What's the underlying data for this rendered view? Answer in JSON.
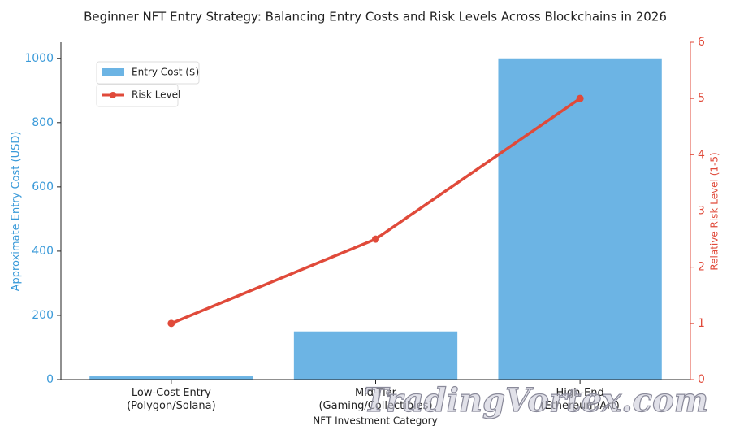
{
  "chart_data": {
    "type": "bar_line",
    "title": "Beginner NFT Entry Strategy: Balancing Entry Costs and Risk Levels Across Blockchains in 2026",
    "x_label": "NFT Investment Category",
    "y_label": "Approximate Entry Cost (USD)",
    "y2_label": "Relative Risk Level (1-5)",
    "categories": [
      "Low-Cost Entry\n(Polygon/Solana)",
      "Mid-Tier\n(Gaming/Collectibles)",
      "High-End\n(Ethereum/Art)"
    ],
    "series": [
      {
        "name": "Entry Cost ($)",
        "type": "bar",
        "color": "#6cb4e4",
        "values": [
          10,
          150,
          1000
        ]
      },
      {
        "name": "Risk Level",
        "type": "line",
        "axis": "y2",
        "color": "#e04a3a",
        "values": [
          1,
          2.5,
          5
        ]
      }
    ],
    "ylim": [
      0,
      1050
    ],
    "yticks": [
      0,
      200,
      400,
      600,
      800,
      1000
    ],
    "y2lim": [
      0,
      6
    ],
    "y2ticks": [
      0,
      1,
      2,
      3,
      4,
      5,
      6
    ],
    "legend": "upper left",
    "watermark": "TradingVortex.com"
  }
}
